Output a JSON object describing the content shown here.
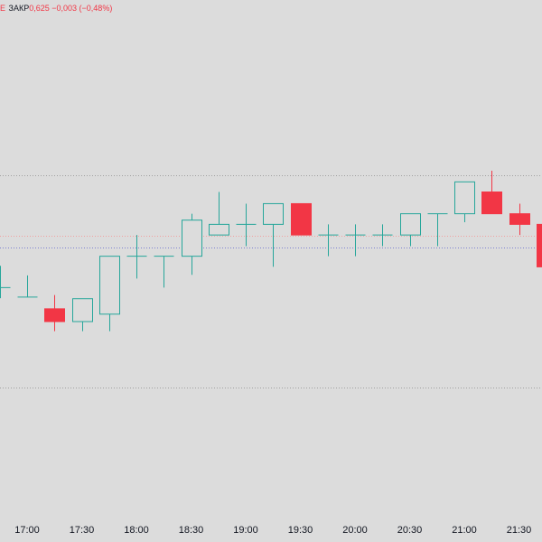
{
  "legend": {
    "series_mark": "Е",
    "close_label": "ЗАКР",
    "close_value": "0,625",
    "change": "−0,003 (−0,48%)"
  },
  "colors": {
    "up": "#26a69a",
    "down": "#f23645",
    "background": "#dcdcdc",
    "text": "#131722",
    "dotted_line_blue": "#7b7fd0",
    "dotted_line_red": "#f0a0a0",
    "dotted_line_gray": "#a0a0a0"
  },
  "chart_data": {
    "type": "candlestick",
    "interval_minutes": 15,
    "y_range": [
      0,
      100
    ],
    "x_ticks": [
      "17:00",
      "17:30",
      "18:00",
      "18:30",
      "19:00",
      "19:30",
      "20:00",
      "20:30",
      "21:00",
      "21:30"
    ],
    "reference_lines": [
      {
        "style": "dotted",
        "color": "gray",
        "value": 69.1
      },
      {
        "style": "dotted",
        "color": "red",
        "value": 57.7
      },
      {
        "style": "dotted",
        "color": "blue",
        "value": 55.5
      },
      {
        "style": "dotted",
        "color": "gray",
        "value": 29.1
      }
    ],
    "candles": [
      {
        "time": "16:45",
        "open": 47.9,
        "high": 52.0,
        "low": 45.9,
        "close": 47.9
      },
      {
        "time": "17:00",
        "open": 46.1,
        "high": 50.2,
        "low": 46.1,
        "close": 46.1
      },
      {
        "time": "17:15",
        "open": 43.9,
        "high": 46.5,
        "low": 39.7,
        "close": 41.5
      },
      {
        "time": "17:30",
        "open": 41.5,
        "high": 45.8,
        "low": 39.7,
        "close": 45.8
      },
      {
        "time": "17:45",
        "open": 42.9,
        "high": 53.8,
        "low": 39.7,
        "close": 53.8
      },
      {
        "time": "18:00",
        "open": 53.8,
        "high": 57.8,
        "low": 49.6,
        "close": 53.8
      },
      {
        "time": "18:15",
        "open": 53.8,
        "high": 53.8,
        "low": 47.9,
        "close": 53.8
      },
      {
        "time": "18:30",
        "open": 53.8,
        "high": 61.8,
        "low": 50.3,
        "close": 60.6
      },
      {
        "time": "18:45",
        "open": 57.8,
        "high": 65.9,
        "low": 57.8,
        "close": 59.8
      },
      {
        "time": "19:00",
        "open": 59.8,
        "high": 63.7,
        "low": 55.7,
        "close": 59.8
      },
      {
        "time": "19:15",
        "open": 59.8,
        "high": 63.7,
        "low": 51.8,
        "close": 63.7
      },
      {
        "time": "19:30",
        "open": 63.7,
        "high": 63.7,
        "low": 57.8,
        "close": 57.8
      },
      {
        "time": "19:45",
        "open": 57.8,
        "high": 59.8,
        "low": 53.8,
        "close": 57.8
      },
      {
        "time": "20:00",
        "open": 57.8,
        "high": 59.8,
        "low": 53.8,
        "close": 57.8
      },
      {
        "time": "20:15",
        "open": 57.8,
        "high": 59.8,
        "low": 55.7,
        "close": 57.8
      },
      {
        "time": "20:30",
        "open": 57.8,
        "high": 61.8,
        "low": 55.7,
        "close": 61.8
      },
      {
        "time": "20:45",
        "open": 61.8,
        "high": 61.8,
        "low": 55.7,
        "close": 61.8
      },
      {
        "time": "21:00",
        "open": 61.8,
        "high": 67.8,
        "low": 60.2,
        "close": 67.8
      },
      {
        "time": "21:15",
        "open": 65.9,
        "high": 69.9,
        "low": 61.8,
        "close": 61.8
      },
      {
        "time": "21:30",
        "open": 61.8,
        "high": 63.7,
        "low": 57.8,
        "close": 59.8
      },
      {
        "time": "21:45",
        "open": 59.8,
        "high": 59.8,
        "low": 51.8,
        "close": 51.8
      }
    ]
  }
}
